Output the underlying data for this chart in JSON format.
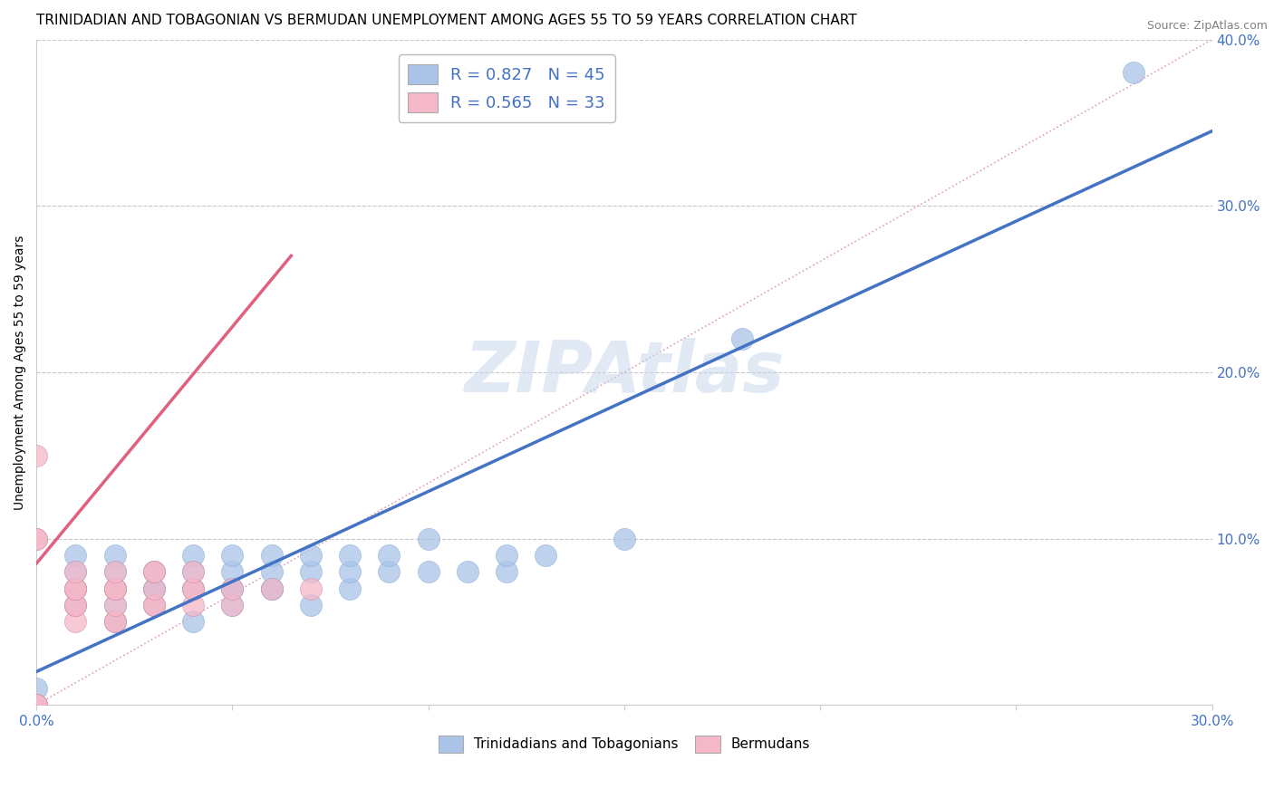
{
  "title": "TRINIDADIAN AND TOBAGONIAN VS BERMUDAN UNEMPLOYMENT AMONG AGES 55 TO 59 YEARS CORRELATION CHART",
  "source": "Source: ZipAtlas.com",
  "ylabel": "Unemployment Among Ages 55 to 59 years",
  "watermark": "ZIPAtlas",
  "legend1_label": "R = 0.827   N = 45",
  "legend2_label": "R = 0.565   N = 33",
  "legend1_color": "#aac4e8",
  "legend2_color": "#f4b8c8",
  "blue_line_color": "#4472c4",
  "pink_line_color": "#e06080",
  "blue_dot_color": "#aac4e8",
  "pink_dot_color": "#f4b8c8",
  "legend_bottom_label1": "Trinidadians and Tobagonians",
  "legend_bottom_label2": "Bermudans",
  "xlim": [
    0.0,
    0.3
  ],
  "ylim": [
    0.0,
    0.4
  ],
  "xticks": [
    0.0,
    0.05,
    0.1,
    0.15,
    0.2,
    0.25,
    0.3
  ],
  "xtick_labels": [
    "0.0%",
    "",
    "",
    "",
    "",
    "",
    "30.0%"
  ],
  "yticks": [
    0.0,
    0.1,
    0.2,
    0.3,
    0.4
  ],
  "ytick_labels": [
    "",
    "10.0%",
    "20.0%",
    "30.0%",
    "40.0%"
  ],
  "title_fontsize": 11,
  "axis_label_fontsize": 10,
  "tick_fontsize": 11,
  "blue_scatter_x": [
    0.0,
    0.0,
    0.01,
    0.01,
    0.01,
    0.01,
    0.02,
    0.02,
    0.02,
    0.02,
    0.02,
    0.03,
    0.03,
    0.03,
    0.03,
    0.04,
    0.04,
    0.04,
    0.04,
    0.05,
    0.05,
    0.05,
    0.05,
    0.05,
    0.06,
    0.06,
    0.06,
    0.06,
    0.07,
    0.07,
    0.07,
    0.08,
    0.08,
    0.08,
    0.09,
    0.09,
    0.1,
    0.1,
    0.11,
    0.12,
    0.12,
    0.13,
    0.15,
    0.18,
    0.28
  ],
  "blue_scatter_y": [
    0.0,
    0.01,
    0.06,
    0.07,
    0.08,
    0.09,
    0.05,
    0.06,
    0.07,
    0.08,
    0.09,
    0.06,
    0.07,
    0.07,
    0.08,
    0.05,
    0.07,
    0.08,
    0.09,
    0.06,
    0.07,
    0.07,
    0.08,
    0.09,
    0.07,
    0.07,
    0.08,
    0.09,
    0.06,
    0.08,
    0.09,
    0.07,
    0.08,
    0.09,
    0.08,
    0.09,
    0.08,
    0.1,
    0.08,
    0.08,
    0.09,
    0.09,
    0.1,
    0.22,
    0.38
  ],
  "pink_scatter_x": [
    0.0,
    0.0,
    0.0,
    0.0,
    0.0,
    0.0,
    0.01,
    0.01,
    0.01,
    0.01,
    0.01,
    0.01,
    0.01,
    0.02,
    0.02,
    0.02,
    0.02,
    0.02,
    0.02,
    0.02,
    0.03,
    0.03,
    0.03,
    0.03,
    0.03,
    0.04,
    0.04,
    0.04,
    0.04,
    0.05,
    0.05,
    0.06,
    0.07
  ],
  "pink_scatter_y": [
    0.0,
    0.0,
    0.0,
    0.1,
    0.1,
    0.15,
    0.05,
    0.06,
    0.06,
    0.07,
    0.07,
    0.07,
    0.08,
    0.05,
    0.05,
    0.06,
    0.07,
    0.07,
    0.07,
    0.08,
    0.06,
    0.06,
    0.07,
    0.08,
    0.08,
    0.06,
    0.07,
    0.07,
    0.08,
    0.06,
    0.07,
    0.07,
    0.07
  ],
  "blue_line_x": [
    0.0,
    0.3
  ],
  "blue_line_y": [
    0.02,
    0.345
  ],
  "pink_line_x": [
    0.0,
    0.065
  ],
  "pink_line_y": [
    0.085,
    0.27
  ],
  "dashed_line_x": [
    0.0,
    0.3
  ],
  "dashed_line_y": [
    0.0,
    0.4
  ],
  "background_color": "#ffffff",
  "grid_color": "#c8c8c8"
}
